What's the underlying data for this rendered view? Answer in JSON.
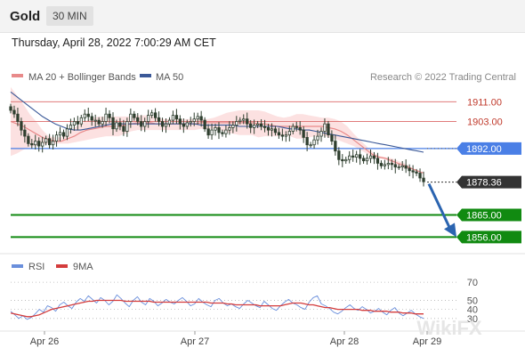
{
  "header": {
    "symbol": "Gold",
    "timeframe": "30 MIN",
    "timestamp": "Thursday, April 28, 2022 7:00:29 AM CET"
  },
  "legend": {
    "ma20": "MA 20 + Bollinger Bands",
    "ma50": "MA 50",
    "credit": "Research © 2022 Trading Central",
    "rsi": "RSI",
    "rsi_ma": "9MA"
  },
  "watermark": "WikiFX",
  "colors": {
    "ma20": "#e88a8a",
    "band_fill": "#fbdcdc",
    "ma50": "#3b5998",
    "resistance": "#e07b7b",
    "pivot": "#4a7fe6",
    "support": "#118a11",
    "price_tag": "#333333",
    "arrow": "#2b64b0",
    "rsi": "#6a8fdc",
    "rsi_ma": "#d43c3c",
    "candle_up": "#ffffff",
    "candle_down": "#2f3f2f"
  },
  "chart_data": [
    {
      "type": "candlestick",
      "x_ticks": [
        "Apr 26",
        "Apr 27",
        "Apr 28",
        "Apr 29"
      ],
      "ylim": [
        1850,
        1918
      ],
      "levels": [
        {
          "label": "1911.00",
          "value": 1911.0,
          "kind": "resistance"
        },
        {
          "label": "1903.00",
          "value": 1903.0,
          "kind": "resistance"
        },
        {
          "label": "1892.00",
          "value": 1892.0,
          "kind": "pivot"
        },
        {
          "label": "1878.36",
          "value": 1878.36,
          "kind": "last-price"
        },
        {
          "label": "1865.00",
          "value": 1865.0,
          "kind": "support"
        },
        {
          "label": "1856.00",
          "value": 1856.0,
          "kind": "support"
        }
      ],
      "close": [
        1907.5,
        1906,
        1903,
        1899.5,
        1897,
        1894,
        1893.5,
        1895,
        1893,
        1894.5,
        1896,
        1893.5,
        1895,
        1897.5,
        1898.5,
        1897,
        1900,
        1901.5,
        1903,
        1902,
        1904.5,
        1906,
        1905,
        1903.5,
        1903.5,
        1902,
        1903,
        1906,
        1904.5,
        1900,
        1902.5,
        1901,
        1899,
        1903,
        1906,
        1904.5,
        1903,
        1901,
        1903,
        1905.5,
        1906.5,
        1904.5,
        1903,
        1901,
        1902,
        1903.5,
        1905.5,
        1904,
        1902,
        1901,
        1902.5,
        1903,
        1904,
        1905,
        1903.5,
        1900,
        1897.5,
        1899.5,
        1900.5,
        1898.5,
        1898,
        1899.5,
        1900.5,
        1901.5,
        1903,
        1903.5,
        1904,
        1902,
        1900.5,
        1901.5,
        1902,
        1901,
        1900.5,
        1899.5,
        1900,
        1898.5,
        1897.5,
        1897,
        1897.5,
        1899,
        1901,
        1900.5,
        1899.5,
        1896.5,
        1893.5,
        1893.5,
        1895.5,
        1897,
        1899,
        1902,
        1897.5,
        1895,
        1891,
        1887.5,
        1887,
        1887.5,
        1889,
        1888.5,
        1889.5,
        1888,
        1887,
        1888,
        1889,
        1888,
        1886,
        1885,
        1885.5,
        1886,
        1885.5,
        1884.5,
        1884.5,
        1885,
        1884,
        1883,
        1882.5,
        1882,
        1880,
        1878.5
      ],
      "ma20_upper": [
        1917,
        1913.5,
        1910,
        1906,
        1903,
        1899.5,
        1897,
        1896.5,
        1896.5,
        1898.5,
        1900.5,
        1902,
        1903.5,
        1904.5,
        1905,
        1905,
        1905,
        1905,
        1905,
        1905,
        1905.5,
        1905.5,
        1905.5,
        1904.5,
        1904,
        1904,
        1904,
        1904,
        1904,
        1904,
        1904,
        1904,
        1904.5,
        1905.5,
        1906.5,
        1907,
        1907.5,
        1907.5,
        1907.5,
        1907.5,
        1907,
        1906,
        1905,
        1904.5,
        1905,
        1906,
        1906,
        1905.5,
        1905,
        1904.5,
        1904.5,
        1904,
        1903,
        1901,
        1898,
        1895.5,
        1893,
        1890.5,
        1889,
        1888.5,
        1888,
        1887,
        1886,
        1884.5,
        1883,
        1882
      ],
      "ma20_mid": [
        1903,
        1902,
        1901,
        1899.5,
        1898,
        1896.5,
        1895.5,
        1895,
        1895,
        1896,
        1897,
        1898.5,
        1899.5,
        1900,
        1900.5,
        1901,
        1901,
        1901,
        1901.5,
        1902,
        1902.5,
        1902.5,
        1902.5,
        1902,
        1902,
        1902,
        1902,
        1902,
        1902,
        1902,
        1902.5,
        1902.5,
        1902.5,
        1902.5,
        1902.5,
        1902.5,
        1902.5,
        1902.5,
        1902.5,
        1902,
        1902,
        1901.5,
        1901,
        1901,
        1901,
        1901,
        1901,
        1901,
        1901,
        1901,
        1900.5,
        1900,
        1899,
        1897.5,
        1895.5,
        1893.5,
        1891.5,
        1889.5,
        1888.5,
        1888,
        1887,
        1886,
        1885,
        1884,
        1883,
        1882
      ],
      "ma20_lower": [
        1889,
        1890,
        1891.5,
        1892.5,
        1893,
        1893.5,
        1894,
        1894,
        1894,
        1894,
        1894.5,
        1895,
        1895.5,
        1896,
        1896.5,
        1897,
        1897,
        1897,
        1898,
        1899,
        1899.5,
        1899.5,
        1899.5,
        1899.5,
        1899.5,
        1899.5,
        1899.5,
        1899.5,
        1899.5,
        1899.5,
        1900,
        1900,
        1900,
        1899.5,
        1898.5,
        1898,
        1897.5,
        1897.5,
        1897.5,
        1896.5,
        1897,
        1897,
        1897,
        1897.5,
        1897,
        1896,
        1896,
        1896.5,
        1897,
        1897.5,
        1896.5,
        1896,
        1895,
        1894,
        1893,
        1891.5,
        1890,
        1888.5,
        1888,
        1887.5,
        1886,
        1885,
        1884,
        1883.5,
        1883,
        1882
      ],
      "ma50": [
        1915,
        1913,
        1911,
        1909,
        1907,
        1905,
        1903.5,
        1902,
        1901,
        1900,
        1899.5,
        1899.5,
        1900,
        1900.5,
        1901,
        1901.5,
        1902,
        1902,
        1902,
        1902,
        1902,
        1902,
        1902,
        1902,
        1902,
        1902,
        1902,
        1902,
        1902,
        1902,
        1901.5,
        1901.5,
        1901.5,
        1901.5,
        1901.5,
        1901.5,
        1901,
        1901,
        1901,
        1901,
        1901,
        1901,
        1901,
        1900.5,
        1900,
        1900,
        1899.5,
        1899.5,
        1899,
        1898.5,
        1898,
        1897.5,
        1897,
        1896.5,
        1896,
        1895.5,
        1895,
        1894.5,
        1894,
        1893.5,
        1893,
        1892.5,
        1892,
        1891.5,
        1891,
        1890.5
      ]
    },
    {
      "type": "line",
      "title": "RSI",
      "y_ticks": [
        70,
        50,
        40,
        30
      ],
      "ylim": [
        20,
        75
      ],
      "series": [
        {
          "name": "RSI",
          "values": [
            38,
            34,
            30,
            33,
            29,
            31,
            35,
            40,
            37,
            44,
            42,
            38,
            45,
            48,
            44,
            41,
            48,
            52,
            49,
            55,
            51,
            47,
            53,
            50,
            45,
            49,
            56,
            52,
            47,
            43,
            50,
            54,
            48,
            45,
            52,
            49,
            44,
            47,
            51,
            48,
            46,
            50,
            53,
            49,
            44,
            46,
            52,
            48,
            45,
            43,
            50,
            52,
            47,
            44,
            46,
            43,
            41,
            46,
            50,
            47,
            44,
            42,
            49,
            45,
            41,
            39,
            44,
            48,
            51,
            47,
            45,
            42,
            40,
            48,
            53,
            55,
            46,
            44,
            41,
            37,
            35,
            38,
            42,
            45,
            41,
            39,
            43,
            40,
            36,
            38,
            41,
            37,
            34,
            39,
            42,
            36,
            33,
            36,
            39,
            35,
            32,
            30
          ]
        },
        {
          "name": "9MA",
          "values": [
            36,
            35,
            34,
            33,
            32,
            32,
            33,
            34,
            36,
            38,
            40,
            41,
            42,
            43,
            44,
            45,
            46,
            47,
            48,
            49,
            49,
            50,
            50,
            50,
            50,
            50,
            50,
            50,
            49,
            49,
            49,
            49,
            49,
            49,
            49,
            48,
            48,
            48,
            48,
            48,
            48,
            48,
            48,
            48,
            48,
            48,
            48,
            48,
            48,
            47,
            47,
            47,
            47,
            46,
            46,
            45,
            45,
            45,
            45,
            45,
            45,
            44,
            44,
            44,
            44,
            44,
            44,
            45,
            46,
            47,
            47,
            47,
            46,
            45,
            45,
            44,
            43,
            42,
            42,
            41,
            40,
            40,
            40,
            40,
            40,
            40,
            39,
            39,
            39,
            38,
            38,
            38,
            38,
            37,
            37,
            37,
            36,
            36,
            36,
            35,
            35,
            35
          ]
        }
      ]
    }
  ]
}
